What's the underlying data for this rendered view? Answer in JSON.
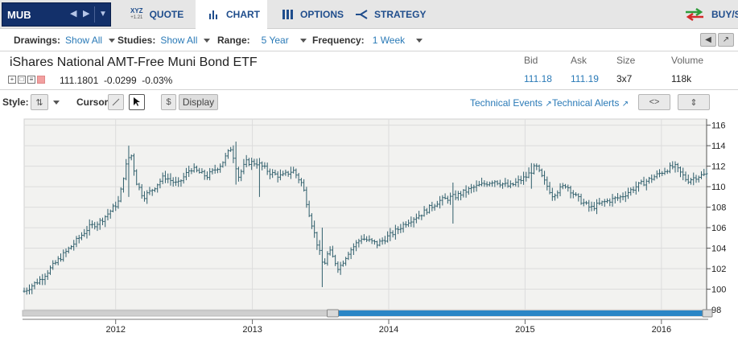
{
  "topnav": {
    "symbol": "MUB",
    "tabs": [
      {
        "label": "QUOTE",
        "icon": "xyz-quote-icon",
        "icon_text_top": "XYZ",
        "icon_text_bottom": "+1.21"
      },
      {
        "label": "CHART",
        "icon": "bar-chart-icon",
        "active": true
      },
      {
        "label": "OPTIONS",
        "icon": "options-icon"
      },
      {
        "label": "STRATEGY",
        "icon": "strategy-icon"
      }
    ],
    "buysell_label": "BUY/SE"
  },
  "controls": {
    "drawings": {
      "label": "Drawings:",
      "value": "Show All"
    },
    "studies": {
      "label": "Studies:",
      "value": "Show All"
    },
    "range": {
      "label": "Range:",
      "value": "5 Year"
    },
    "frequency": {
      "label": "Frequency:",
      "value": "1 Week"
    }
  },
  "quote": {
    "name": "iShares National AMT-Free Muni Bond ETF",
    "price_line": "111.1801  -0.0299  -0.03%",
    "bid": {
      "label": "Bid",
      "value": "111.18"
    },
    "ask": {
      "label": "Ask",
      "value": "111.19"
    },
    "size": {
      "label": "Size",
      "value": "3x7"
    },
    "volume": {
      "label": "Volume",
      "value": "118k"
    }
  },
  "chart_toolbar": {
    "style_label": "Style:",
    "cursor_label": "Cursor:",
    "dollar_label": "$",
    "display_label": "Display",
    "technical_events": "Technical Events",
    "technical_alerts": "Technical Alerts"
  },
  "colors": {
    "nav_bg": "#e6e6e6",
    "symbol_bg": "#13306a",
    "accent_blue": "#2a7ab7",
    "bar_color": "#2f5e6b",
    "plot_bg": "#f2f2f0",
    "scroll_fill": "#2b86c6"
  },
  "chart_data": {
    "type": "ohlc",
    "frequency": "1 Week",
    "y_ticks": [
      98,
      100,
      102,
      104,
      106,
      108,
      110,
      112,
      114,
      116
    ],
    "ylim": [
      98,
      116.6
    ],
    "x_tick_labels": [
      "2012",
      "2013",
      "2014",
      "2015",
      "2016"
    ],
    "x_tick_dates": [
      "2012-01-01",
      "2013-01-01",
      "2014-01-01",
      "2015-01-01",
      "2016-01-01"
    ],
    "xlim": [
      "2011-05-01",
      "2016-05-01"
    ],
    "grid": true,
    "close_anchors": [
      [
        "2011-05-01",
        99.8
      ],
      [
        "2011-06-15",
        101.0
      ],
      [
        "2011-07-25",
        102.6
      ],
      [
        "2011-08-20",
        103.6
      ],
      [
        "2011-09-15",
        104.6
      ],
      [
        "2011-10-20",
        106.0
      ],
      [
        "2011-11-20",
        106.6
      ],
      [
        "2011-12-15",
        107.5
      ],
      [
        "2012-01-10",
        108.6
      ],
      [
        "2012-01-25",
        111.6
      ],
      [
        "2012-02-10",
        113.4
      ],
      [
        "2012-02-25",
        110.5
      ],
      [
        "2012-03-15",
        109.0
      ],
      [
        "2012-04-05",
        109.6
      ],
      [
        "2012-05-10",
        111.0
      ],
      [
        "2012-06-15",
        110.2
      ],
      [
        "2012-07-20",
        111.8
      ],
      [
        "2012-09-01",
        111.0
      ],
      [
        "2012-10-10",
        112.2
      ],
      [
        "2012-11-05",
        113.8
      ],
      [
        "2012-11-25",
        111.0
      ],
      [
        "2012-12-15",
        112.4
      ],
      [
        "2013-01-15",
        112.3
      ],
      [
        "2013-02-20",
        111.3
      ],
      [
        "2013-03-20",
        111.0
      ],
      [
        "2013-04-20",
        111.6
      ],
      [
        "2013-05-15",
        110.2
      ],
      [
        "2013-06-08",
        106.5
      ],
      [
        "2013-06-25",
        104.2
      ],
      [
        "2013-07-10",
        102.2
      ],
      [
        "2013-07-25",
        103.8
      ],
      [
        "2013-08-20",
        102.0
      ],
      [
        "2013-09-15",
        103.6
      ],
      [
        "2013-10-20",
        105.0
      ],
      [
        "2013-12-01",
        104.4
      ],
      [
        "2014-01-10",
        105.4
      ],
      [
        "2014-02-20",
        106.6
      ],
      [
        "2014-04-01",
        107.4
      ],
      [
        "2014-05-15",
        108.6
      ],
      [
        "2014-07-01",
        109.1
      ],
      [
        "2014-08-15",
        109.9
      ],
      [
        "2014-10-10",
        110.6
      ],
      [
        "2014-11-20",
        110.0
      ],
      [
        "2015-01-05",
        111.0
      ],
      [
        "2015-01-30",
        112.0
      ],
      [
        "2015-02-20",
        110.6
      ],
      [
        "2015-03-15",
        109.2
      ],
      [
        "2015-04-20",
        110.2
      ],
      [
        "2015-05-20",
        108.9
      ],
      [
        "2015-06-25",
        107.9
      ],
      [
        "2015-08-01",
        108.5
      ],
      [
        "2015-09-15",
        109.0
      ],
      [
        "2015-10-25",
        110.0
      ],
      [
        "2015-12-05",
        110.8
      ],
      [
        "2016-01-15",
        111.7
      ],
      [
        "2016-02-05",
        112.0
      ],
      [
        "2016-03-10",
        110.6
      ],
      [
        "2016-04-05",
        111.0
      ],
      [
        "2016-05-01",
        111.2
      ]
    ],
    "spikes": [
      {
        "date": "2012-02-05",
        "high": 114.0,
        "low": 109.0
      },
      {
        "date": "2012-11-15",
        "high": 114.4,
        "low": 110.2
      },
      {
        "date": "2013-01-20",
        "high": 112.8,
        "low": 109.0
      },
      {
        "date": "2013-07-05",
        "high": 106.0,
        "low": 100.2
      },
      {
        "date": "2014-06-20",
        "high": 110.4,
        "low": 106.4
      },
      {
        "date": "2015-01-15",
        "high": 112.3,
        "low": 109.8
      }
    ],
    "navigator": {
      "start": "2013-08-15",
      "end": "2016-05-01"
    }
  }
}
